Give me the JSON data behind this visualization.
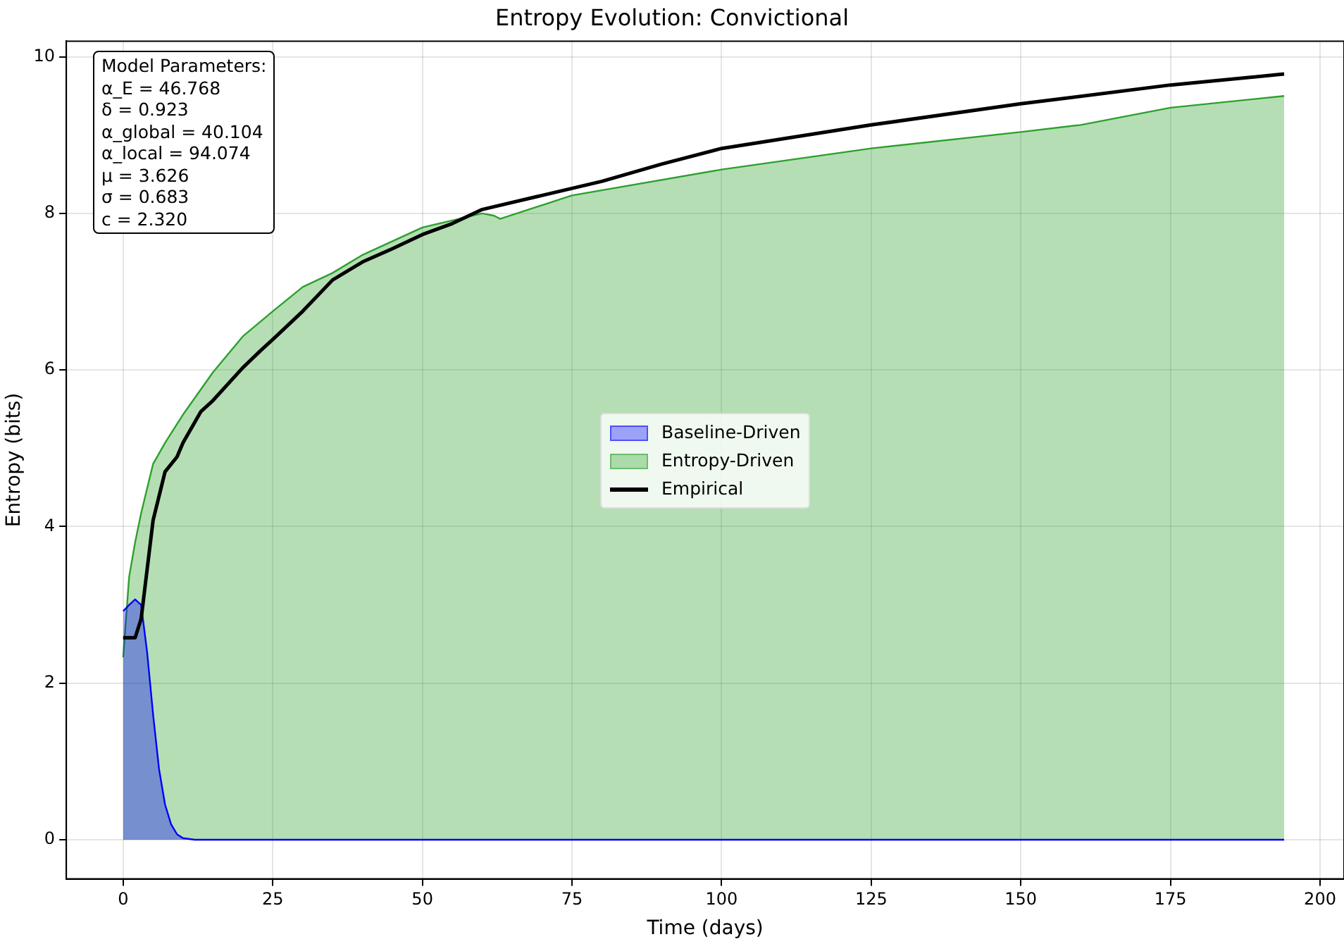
{
  "chart_data": {
    "type": "area",
    "title": "Entropy Evolution: Convictional",
    "xlabel": "Time (days)",
    "ylabel": "Entropy (bits)",
    "annotations": [
      "Model Parameters:\nα_E = 46.768\nδ = 0.923\nα_global = 40.104\nα_local = 94.074\nμ = 3.626\nσ = 0.683\nc = 2.320"
    ],
    "series": [
      {
        "name": "Entropy-Driven",
        "color": "#2ca02c",
        "x": [
          0,
          1,
          2,
          3,
          5,
          7,
          10,
          15,
          20,
          25,
          30,
          35,
          40,
          50,
          60,
          62,
          63,
          75,
          100,
          125,
          150,
          160,
          175,
          194
        ],
        "values": [
          2.33,
          3.36,
          3.8,
          4.17,
          4.8,
          5.07,
          5.43,
          5.97,
          6.43,
          6.75,
          7.06,
          7.24,
          7.47,
          7.82,
          8.0,
          7.97,
          7.93,
          8.23,
          8.56,
          8.83,
          9.04,
          9.13,
          9.35,
          9.5
        ]
      },
      {
        "name": "Baseline-Driven",
        "color": "#0000ff",
        "x": [
          0,
          1,
          2,
          3,
          4,
          5,
          6,
          7,
          8,
          9,
          10,
          12,
          194
        ],
        "values": [
          2.92,
          3.0,
          3.07,
          3.0,
          2.4,
          1.6,
          0.9,
          0.45,
          0.2,
          0.07,
          0.02,
          0,
          0
        ]
      },
      {
        "name": "Empirical",
        "type": "line",
        "color": "#000000",
        "x": [
          0,
          2,
          3,
          5,
          7,
          9,
          10,
          13,
          15,
          20,
          23,
          25,
          30,
          35,
          40,
          45,
          50,
          55,
          60,
          70,
          80,
          90,
          100,
          125,
          150,
          175,
          194
        ],
        "values": [
          2.58,
          2.58,
          2.82,
          4.08,
          4.7,
          4.89,
          5.07,
          5.47,
          5.61,
          6.03,
          6.25,
          6.39,
          6.75,
          7.15,
          7.38,
          7.55,
          7.73,
          7.87,
          8.05,
          8.23,
          8.41,
          8.63,
          8.83,
          9.13,
          9.4,
          9.64,
          9.78
        ]
      }
    ],
    "xlim": [
      -9.5,
      204
    ],
    "xticks": [
      0,
      25,
      50,
      75,
      100,
      125,
      150,
      175,
      200
    ],
    "ylim": [
      -0.5,
      10.2
    ],
    "yticks": [
      0,
      2,
      4,
      6,
      8,
      10
    ],
    "grid": true,
    "legend": "center",
    "marker": "none"
  }
}
